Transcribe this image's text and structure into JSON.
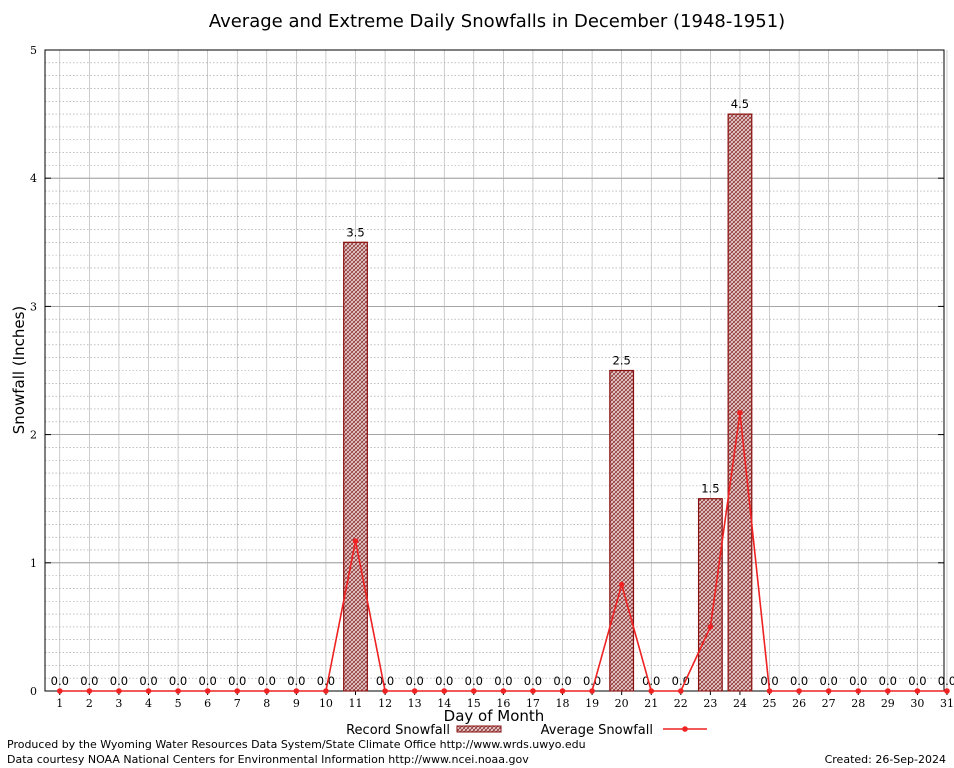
{
  "chart_data": {
    "type": "bar",
    "title": "Average and Extreme Daily Snowfalls in December (1948-1951)",
    "xlabel": "Day of Month",
    "ylabel": "Snowfall (Inches)",
    "ylim": [
      0,
      5
    ],
    "yticks": [
      0,
      1,
      2,
      3,
      4,
      5
    ],
    "grid": true,
    "categories": [
      "1",
      "2",
      "3",
      "4",
      "5",
      "6",
      "7",
      "8",
      "9",
      "10",
      "11",
      "12",
      "13",
      "14",
      "15",
      "16",
      "17",
      "18",
      "19",
      "20",
      "21",
      "22",
      "23",
      "24",
      "25",
      "26",
      "27",
      "28",
      "29",
      "30",
      "31"
    ],
    "series": [
      {
        "name": "Record Snowfall",
        "kind": "bar",
        "color": "#cc0000",
        "values": [
          0,
          0,
          0,
          0,
          0,
          0,
          0,
          0,
          0,
          0,
          3.5,
          0,
          0,
          0,
          0,
          0,
          0,
          0,
          0,
          2.5,
          0,
          0,
          1.5,
          4.5,
          0,
          0,
          0,
          0,
          0,
          0,
          0
        ],
        "labels": [
          "0.0",
          "0.0",
          "0.0",
          "0.0",
          "0.0",
          "0.0",
          "0.0",
          "0.0",
          "0.0",
          "0.0",
          "3.5",
          "0.0",
          "0.0",
          "0.0",
          "0.0",
          "0.0",
          "0.0",
          "0.0",
          "0.0",
          "2.5",
          "0.0",
          "0.0",
          "1.5",
          "4.5",
          "0.0",
          "0.0",
          "0.0",
          "0.0",
          "0.0",
          "0.0",
          "0.0"
        ]
      },
      {
        "name": "Average Snowfall",
        "kind": "line",
        "color": "#ee2222",
        "values": [
          0,
          0,
          0,
          0,
          0,
          0,
          0,
          0,
          0,
          0,
          1.17,
          0,
          0,
          0,
          0,
          0,
          0,
          0,
          0,
          0.83,
          0,
          0,
          0.5,
          2.17,
          0,
          0,
          0,
          0,
          0,
          0,
          0
        ]
      }
    ],
    "legend_position": "bottom-center"
  },
  "footer": {
    "produced_by": "Produced by the Wyoming Water Resources Data System/State Climate Office http://www.wrds.uwyo.edu",
    "data_courtesy": "Data courtesy NOAA National Centers for Environmental Information http://www.ncei.noaa.gov",
    "created": "Created:  26-Sep-2024"
  }
}
